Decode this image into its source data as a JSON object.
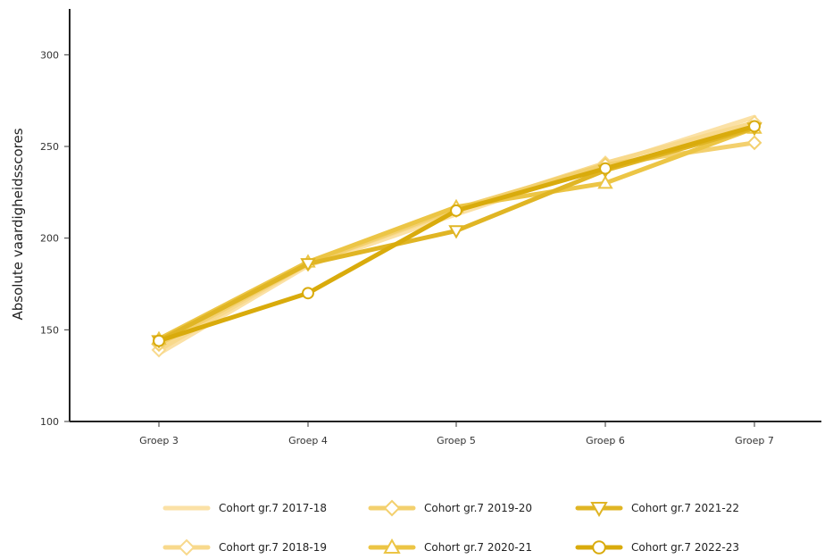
{
  "chart_data": {
    "type": "line",
    "title": "",
    "xlabel": "",
    "ylabel": "Absolute vaardigheidsscores",
    "categories": [
      "Groep 3",
      "Groep 4",
      "Groep 5",
      "Groep 6",
      "Groep 7"
    ],
    "ylim": [
      100,
      325
    ],
    "yticks": [
      100,
      150,
      200,
      250,
      300
    ],
    "grid": false,
    "legend_position": "bottom",
    "series": [
      {
        "name": "Cohort gr.7 2017-18",
        "values": [
          137,
          185,
          213,
          240,
          266
        ],
        "color": "#fbe1a6",
        "marker": "none"
      },
      {
        "name": "Cohort gr.7 2018-19",
        "values": [
          139,
          186,
          215,
          241,
          263
        ],
        "color": "#f8d98c",
        "marker": "diamond"
      },
      {
        "name": "Cohort gr.7 2019-20",
        "values": [
          142,
          186,
          216,
          240,
          252
        ],
        "color": "#f3d06e",
        "marker": "diamond"
      },
      {
        "name": "Cohort gr.7 2020-21",
        "values": [
          145,
          187,
          217,
          230,
          260
        ],
        "color": "#ecc545",
        "marker": "triangle-up"
      },
      {
        "name": "Cohort gr.7 2021-22",
        "values": [
          144,
          186,
          204,
          237,
          260
        ],
        "color": "#e0b524",
        "marker": "triangle-down"
      },
      {
        "name": "Cohort gr.7 2022-23",
        "values": [
          144,
          170,
          215,
          238,
          261
        ],
        "color": "#d9ab0c",
        "marker": "circle"
      }
    ]
  }
}
